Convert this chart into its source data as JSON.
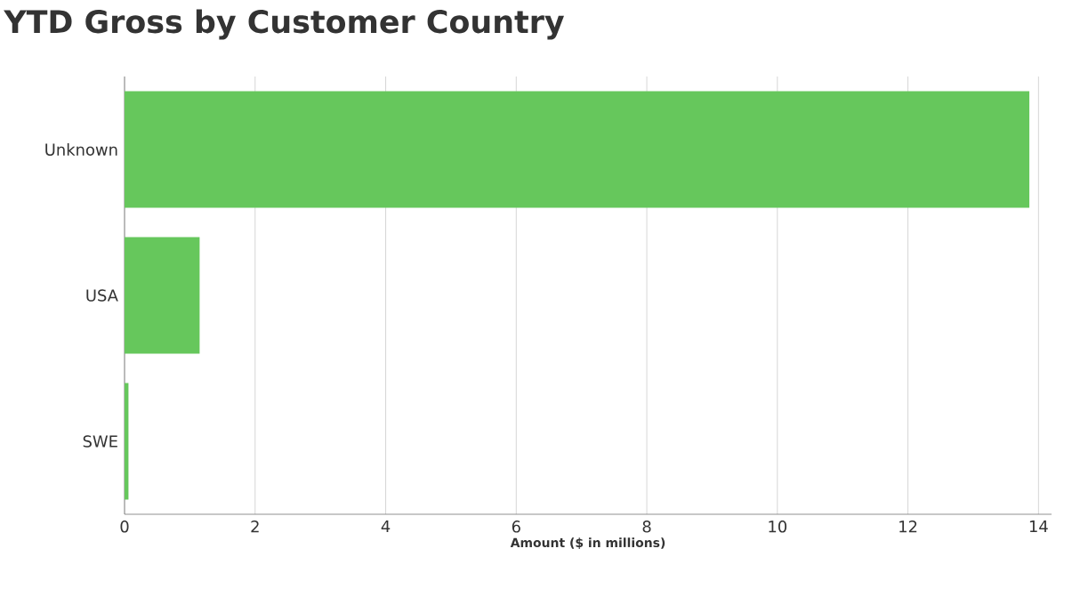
{
  "chart_data": {
    "type": "bar",
    "orientation": "horizontal",
    "title": "YTD Gross by Customer Country",
    "xlabel": "Amount ($ in millions)",
    "categories": [
      "Unknown",
      "USA",
      "SWE"
    ],
    "values": [
      13.86,
      1.15,
      0.06
    ],
    "color": "#66c75c",
    "xlim": [
      0,
      14.2
    ],
    "xticks": [
      0,
      2,
      4,
      6,
      8,
      10,
      12,
      14
    ],
    "grid": "x"
  }
}
